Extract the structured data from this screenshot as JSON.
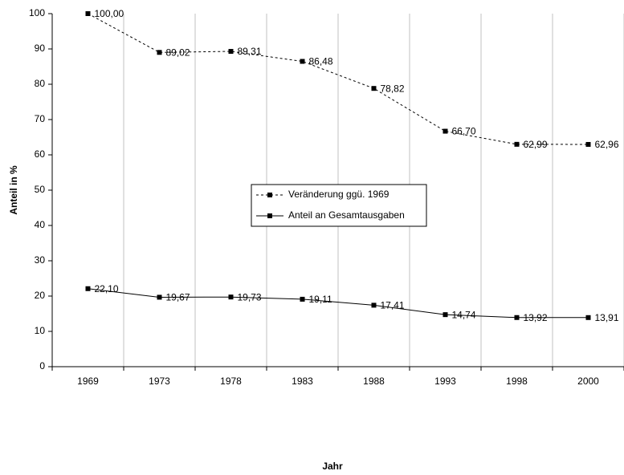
{
  "chart_data": {
    "type": "line",
    "xlabel": "Jahr",
    "ylabel": "Anteil in  %",
    "categories": [
      "1969",
      "1973",
      "1978",
      "1983",
      "1988",
      "1993",
      "1998",
      "2000"
    ],
    "series": [
      {
        "name": "Veränderung ggü. 1969",
        "color": "#000000",
        "dash": true,
        "values": [
          100,
          89.02,
          89.31,
          86.48,
          78.82,
          66.7,
          62.99,
          62.96
        ],
        "value_labels": [
          "100,00",
          "89,02",
          "89,31",
          "86,48",
          "78,82",
          "66,70",
          "62,99",
          "62,96"
        ]
      },
      {
        "name": "Anteil an Gesamtausgaben",
        "color": "#000000",
        "dash": false,
        "values": [
          22.1,
          19.67,
          19.73,
          19.11,
          17.41,
          14.74,
          13.92,
          13.91
        ],
        "value_labels": [
          "22,10",
          "19,67",
          "19,73",
          "19,11",
          "17,41",
          "14,74",
          "13,92",
          "13,91"
        ]
      }
    ],
    "ylim": [
      0,
      100
    ],
    "yticks": [
      0,
      10,
      20,
      30,
      40,
      50,
      60,
      70,
      80,
      90,
      100
    ],
    "grid": "x",
    "legend": "center"
  }
}
